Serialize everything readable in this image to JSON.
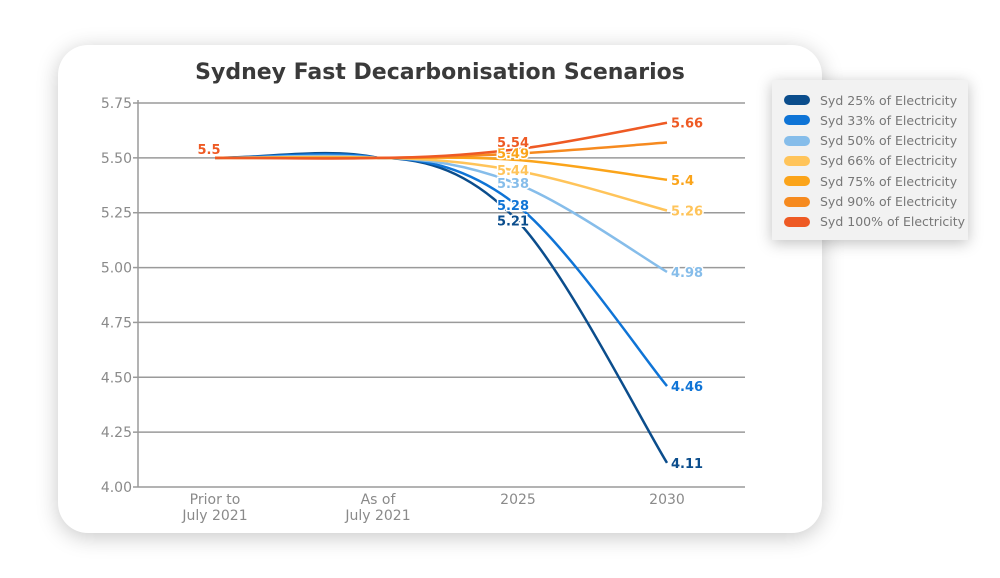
{
  "chart_data": {
    "type": "line",
    "title": "Sydney Fast Decarbonisation Scenarios",
    "categories": [
      "Prior to July 2021",
      "As of July 2021",
      "2025",
      "2030"
    ],
    "xlabel": "",
    "ylabel": "",
    "ylim": [
      4.0,
      5.75
    ],
    "yticks": [
      "5.75",
      "5.50",
      "5.25",
      "5.00",
      "4.75",
      "4.50",
      "4.25",
      "4.00"
    ],
    "grid": true,
    "legend_position": "right",
    "series": [
      {
        "name": "Syd 25% of Electricity",
        "color": "#0b4d8c",
        "values": [
          5.5,
          5.5,
          5.21,
          4.11
        ],
        "labels": [
          "",
          "",
          "5.21",
          "4.11"
        ]
      },
      {
        "name": "Syd 33% of Electricity",
        "color": "#0f74d6",
        "values": [
          5.5,
          5.5,
          5.28,
          4.46
        ],
        "labels": [
          "",
          "",
          "5.28",
          "4.46"
        ]
      },
      {
        "name": "Syd 50% of Electricity",
        "color": "#86bdea",
        "values": [
          5.5,
          5.5,
          5.38,
          4.98
        ],
        "labels": [
          "",
          "",
          "5.38",
          "4.98"
        ]
      },
      {
        "name": "Syd 66% of Electricity",
        "color": "#ffc45a",
        "values": [
          5.5,
          5.5,
          5.44,
          5.26
        ],
        "labels": [
          "",
          "",
          "5.44",
          "5.26"
        ]
      },
      {
        "name": "Syd 75% of Electricity",
        "color": "#fba41a",
        "values": [
          5.5,
          5.5,
          5.49,
          5.4
        ],
        "labels": [
          "",
          "",
          "5.49",
          "5.4"
        ]
      },
      {
        "name": "Syd 90% of Electricity",
        "color": "#f68a1f",
        "values": [
          5.5,
          5.5,
          5.52,
          5.57
        ],
        "labels": [
          "",
          "",
          "",
          ""
        ]
      },
      {
        "name": "Syd 100% of Electricity",
        "color": "#ee5a24",
        "values": [
          5.5,
          5.5,
          5.54,
          5.66
        ],
        "labels": [
          "5.5",
          "",
          "5.54",
          "5.66"
        ]
      }
    ]
  }
}
